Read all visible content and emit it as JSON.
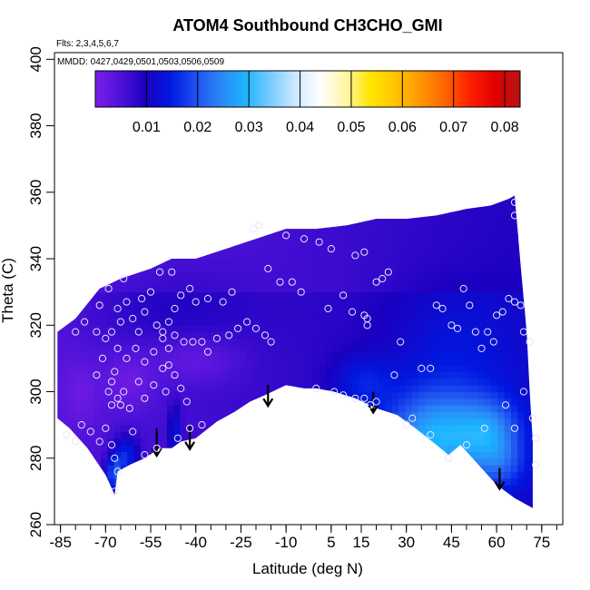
{
  "chart_data": {
    "type": "heatmap",
    "title": "ATOM4 Southbound CH3CHO_GMI",
    "notes": {
      "flights": "Flts: 2,3,4,5,6,7",
      "dates": "MMDD: 0427,0429,0501,0503,0506,0509"
    },
    "xlabel": "Latitude (deg N)",
    "ylabel": "Theta (C)",
    "xlim": [
      -87,
      82
    ],
    "ylim": [
      260,
      402
    ],
    "x_ticks": [
      -85,
      -70,
      -55,
      -40,
      -25,
      -10,
      5,
      15,
      30,
      45,
      60,
      75
    ],
    "x_minor_ticks": [
      -85,
      -80,
      -75,
      -70,
      -65,
      -60,
      -55,
      -50,
      -45,
      -40,
      -35,
      -30,
      -25,
      -20,
      -15,
      -10,
      -5,
      0,
      5,
      10,
      15,
      20,
      25,
      30,
      35,
      40,
      45,
      50,
      55,
      60,
      65,
      70,
      75,
      80
    ],
    "y_ticks": [
      260,
      280,
      300,
      320,
      340,
      360,
      380,
      400
    ],
    "colorbar": {
      "range": [
        0.0,
        0.083
      ],
      "ticks": [
        0.01,
        0.02,
        0.03,
        0.04,
        0.05,
        0.06,
        0.07,
        0.08
      ],
      "colors": [
        "#7a1ee8",
        "#4f12d8",
        "#1a00c0",
        "#0018e0",
        "#1e50f0",
        "#2a86f6",
        "#1cb4ff",
        "#78cbff",
        "#cde8ff",
        "#ffffff",
        "#fff6a8",
        "#ffe600",
        "#ffc400",
        "#ff9600",
        "#ff6400",
        "#ff1e00",
        "#e00000",
        "#b81414"
      ]
    },
    "domain_boundary": {
      "top": [
        [
          -86,
          318
        ],
        [
          -80,
          322
        ],
        [
          -72,
          331
        ],
        [
          -65,
          334
        ],
        [
          -55,
          337
        ],
        [
          -48,
          340
        ],
        [
          -40,
          340
        ],
        [
          -30,
          343
        ],
        [
          -20,
          346
        ],
        [
          -10,
          349
        ],
        [
          0,
          349
        ],
        [
          10,
          350
        ],
        [
          20,
          352
        ],
        [
          30,
          352
        ],
        [
          40,
          353
        ],
        [
          50,
          355
        ],
        [
          58,
          356
        ],
        [
          64,
          358
        ],
        [
          66,
          359
        ]
      ],
      "right": [
        [
          66,
          359
        ],
        [
          68,
          338
        ],
        [
          70,
          318
        ],
        [
          71,
          300
        ],
        [
          72,
          285
        ],
        [
          72,
          265
        ]
      ],
      "bottom": [
        [
          72,
          265
        ],
        [
          66,
          268
        ],
        [
          60,
          272
        ],
        [
          54,
          278
        ],
        [
          48,
          284
        ],
        [
          44,
          281
        ],
        [
          40,
          284
        ],
        [
          33,
          289
        ],
        [
          27,
          293
        ],
        [
          20,
          295
        ],
        [
          13,
          298
        ],
        [
          6,
          300
        ],
        [
          0,
          301
        ],
        [
          -4,
          301
        ],
        [
          -10,
          302
        ],
        [
          -17,
          299
        ],
        [
          -22,
          297
        ],
        [
          -27,
          294
        ],
        [
          -33,
          291
        ],
        [
          -40,
          286
        ],
        [
          -45,
          285
        ],
        [
          -48,
          283
        ],
        [
          -52,
          283
        ],
        [
          -57,
          280
        ],
        [
          -62,
          278
        ],
        [
          -66,
          276
        ],
        [
          -67,
          269
        ]
      ],
      "left": [
        [
          -67,
          269
        ],
        [
          -70,
          275
        ],
        [
          -76,
          283
        ],
        [
          -82,
          289
        ],
        [
          -86,
          292
        ],
        [
          -86,
          318
        ]
      ]
    },
    "value_blobs": [
      {
        "x": 40,
        "y": 286,
        "sx": 18,
        "sy": 14,
        "value": 0.019
      },
      {
        "x": 58,
        "y": 288,
        "sx": 10,
        "sy": 10,
        "value": 0.01
      },
      {
        "x": 62,
        "y": 278,
        "sx": 8,
        "sy": 8,
        "value": 0.006
      },
      {
        "x": 15,
        "y": 303,
        "sx": 10,
        "sy": 8,
        "value": 0.006
      },
      {
        "x": 45,
        "y": 312,
        "sx": 22,
        "sy": 20,
        "value": 0.004
      },
      {
        "x": -67,
        "y": 275,
        "sx": 3,
        "sy": 6,
        "value": 0.014
      },
      {
        "x": -63,
        "y": 281,
        "sx": 4,
        "sy": 6,
        "value": 0.01
      },
      {
        "x": -47,
        "y": 288,
        "sx": 2,
        "sy": 8,
        "value": 0.008
      },
      {
        "x": -40,
        "y": 310,
        "sx": 15,
        "sy": 7,
        "value": -0.004
      },
      {
        "x": -62,
        "y": 303,
        "sx": 8,
        "sy": 8,
        "value": -0.004
      },
      {
        "x": -78,
        "y": 300,
        "sx": 6,
        "sy": 10,
        "value": -0.003
      },
      {
        "x": -50,
        "y": 326,
        "sx": 28,
        "sy": 14,
        "value": 0.003
      }
    ],
    "points": [
      [
        -83,
        287
      ],
      [
        -80,
        285
      ],
      [
        -78,
        290
      ],
      [
        -75,
        288
      ],
      [
        -72,
        285
      ],
      [
        -70,
        289
      ],
      [
        -68,
        284
      ],
      [
        -67,
        280
      ],
      [
        -66,
        276
      ],
      [
        -67,
        270
      ],
      [
        -73,
        305
      ],
      [
        -71,
        310
      ],
      [
        -69,
        300
      ],
      [
        -68,
        303
      ],
      [
        -68,
        296
      ],
      [
        -67,
        306
      ],
      [
        -66,
        298
      ],
      [
        -65,
        296
      ],
      [
        -64,
        300
      ],
      [
        -62,
        295
      ],
      [
        -59,
        303
      ],
      [
        -57,
        298
      ],
      [
        -54,
        302
      ],
      [
        -50,
        300
      ],
      [
        -68,
        318
      ],
      [
        -66,
        325
      ],
      [
        -65,
        321
      ],
      [
        -63,
        327
      ],
      [
        -61,
        322
      ],
      [
        -59,
        318
      ],
      [
        -57,
        324
      ],
      [
        -55,
        330
      ],
      [
        -53,
        320
      ],
      [
        -51,
        316
      ],
      [
        -49,
        321
      ],
      [
        -47,
        325
      ],
      [
        -45,
        329
      ],
      [
        -72,
        326
      ],
      [
        -69,
        331
      ],
      [
        -64,
        334
      ],
      [
        -58,
        328
      ],
      [
        -52,
        336
      ],
      [
        -48,
        336
      ],
      [
        -42,
        331
      ],
      [
        -40,
        327
      ],
      [
        -36,
        328
      ],
      [
        -31,
        327
      ],
      [
        -28,
        330
      ],
      [
        -80,
        318
      ],
      [
        -77,
        321
      ],
      [
        -73,
        318
      ],
      [
        -70,
        316
      ],
      [
        -66,
        313
      ],
      [
        -63,
        310
      ],
      [
        -60,
        313
      ],
      [
        -57,
        309
      ],
      [
        -54,
        312
      ],
      [
        -51,
        318
      ],
      [
        -49,
        313
      ],
      [
        -47,
        317
      ],
      [
        -44,
        315
      ],
      [
        -41,
        315
      ],
      [
        -38,
        315
      ],
      [
        -36,
        312
      ],
      [
        -33,
        316
      ],
      [
        -29,
        317
      ],
      [
        -26,
        319
      ],
      [
        -23,
        321
      ],
      [
        -20,
        319
      ],
      [
        -17,
        317
      ],
      [
        -15,
        315
      ],
      [
        -51,
        307
      ],
      [
        -49,
        308
      ],
      [
        -47,
        305
      ],
      [
        -45,
        301
      ],
      [
        -43,
        297
      ],
      [
        -38,
        290
      ],
      [
        -42,
        289
      ],
      [
        -46,
        286
      ],
      [
        -53,
        283
      ],
      [
        -57,
        281
      ],
      [
        -61,
        288
      ],
      [
        -21,
        349
      ],
      [
        -19,
        350
      ],
      [
        -10,
        347
      ],
      [
        -4,
        346
      ],
      [
        1,
        345
      ],
      [
        5,
        343
      ],
      [
        13,
        341
      ],
      [
        16,
        342
      ],
      [
        -16,
        337
      ],
      [
        -12,
        333
      ],
      [
        -8,
        333
      ],
      [
        -5,
        330
      ],
      [
        4,
        325
      ],
      [
        9,
        329
      ],
      [
        12,
        324
      ],
      [
        16,
        323
      ],
      [
        17,
        320
      ],
      [
        20,
        333
      ],
      [
        22,
        334
      ],
      [
        24,
        336
      ],
      [
        17,
        322
      ],
      [
        26,
        305
      ],
      [
        28,
        315
      ],
      [
        0,
        301
      ],
      [
        6,
        300
      ],
      [
        9,
        299
      ],
      [
        13,
        298
      ],
      [
        18,
        296
      ],
      [
        16,
        298
      ],
      [
        20,
        297
      ],
      [
        30,
        290
      ],
      [
        32,
        292
      ],
      [
        35,
        307
      ],
      [
        38,
        307
      ],
      [
        40,
        326
      ],
      [
        42,
        325
      ],
      [
        45,
        320
      ],
      [
        47,
        319
      ],
      [
        49,
        331
      ],
      [
        51,
        326
      ],
      [
        53,
        318
      ],
      [
        55,
        313
      ],
      [
        57,
        318
      ],
      [
        59,
        315
      ],
      [
        60,
        323
      ],
      [
        62,
        324
      ],
      [
        64,
        328
      ],
      [
        66,
        327
      ],
      [
        68,
        326
      ],
      [
        69,
        318
      ],
      [
        71,
        315
      ],
      [
        63,
        296
      ],
      [
        66,
        289
      ],
      [
        69,
        300
      ],
      [
        72,
        292
      ],
      [
        73,
        286
      ],
      [
        73,
        278
      ],
      [
        38,
        287
      ],
      [
        44,
        280
      ],
      [
        50,
        284
      ],
      [
        56,
        289
      ],
      [
        66,
        357
      ],
      [
        66,
        353
      ]
    ],
    "arrows": [
      {
        "x": -53,
        "y_top": 289,
        "y_bottom": 281
      },
      {
        "x": -42,
        "y_top": 290,
        "y_bottom": 283
      },
      {
        "x": -16,
        "y_top": 302,
        "y_bottom": 296
      },
      {
        "x": 19,
        "y_top": 300,
        "y_bottom": 294
      },
      {
        "x": 61,
        "y_top": 277,
        "y_bottom": 271
      }
    ]
  }
}
